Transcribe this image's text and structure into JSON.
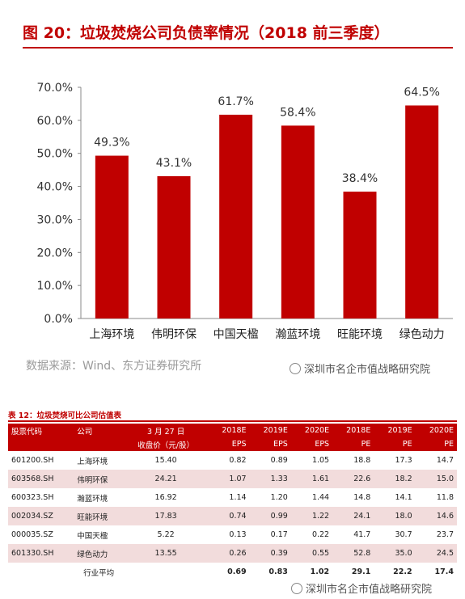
{
  "page_title": "图 20：垃圾焚烧公司负债率情况（2018 前三季度）",
  "source": "数据来源：Wind、东方证券研究所",
  "watermark": "深圳市名企市值战略研究院",
  "chart_data": {
    "type": "bar",
    "categories": [
      "上海环境",
      "伟明环保",
      "中国天楹",
      "瀚蓝环境",
      "旺能环境",
      "绿色动力"
    ],
    "values": [
      49.3,
      43.1,
      61.7,
      58.4,
      38.4,
      64.5
    ],
    "value_labels": [
      "49.3%",
      "43.1%",
      "61.7%",
      "58.4%",
      "38.4%",
      "64.5%"
    ],
    "ylim": [
      0,
      70
    ],
    "y_ticks": [
      "0.0%",
      "10.0%",
      "20.0%",
      "30.0%",
      "40.0%",
      "50.0%",
      "60.0%",
      "70.0%"
    ],
    "bar_color": "#c00000",
    "grid": false,
    "legend": "none"
  },
  "table": {
    "title": "表 12：垃圾焚烧可比公司估值表",
    "header_top": [
      "股票代码",
      "公司",
      "3 月 27 日",
      "2018E",
      "2019E",
      "2020E",
      "2018E",
      "2019E",
      "2020E"
    ],
    "header_bottom": [
      "",
      "",
      "收盘价（元/股）",
      "EPS",
      "EPS",
      "EPS",
      "PE",
      "PE",
      "PE"
    ],
    "rows": [
      [
        "601200.SH",
        "上海环境",
        "15.40",
        "0.82",
        "0.89",
        "1.05",
        "18.8",
        "17.3",
        "14.7"
      ],
      [
        "603568.SH",
        "伟明环保",
        "24.21",
        "1.07",
        "1.33",
        "1.61",
        "22.6",
        "18.2",
        "15.0"
      ],
      [
        "600323.SH",
        "瀚蓝环境",
        "16.92",
        "1.14",
        "1.20",
        "1.44",
        "14.8",
        "14.1",
        "11.8"
      ],
      [
        "002034.SZ",
        "旺能环境",
        "17.83",
        "0.74",
        "0.99",
        "1.22",
        "24.1",
        "18.0",
        "14.6"
      ],
      [
        "000035.SZ",
        "中国天楹",
        "5.22",
        "0.13",
        "0.17",
        "0.22",
        "41.7",
        "30.7",
        "23.7"
      ],
      [
        "601330.SH",
        "绿色动力",
        "13.55",
        "0.26",
        "0.39",
        "0.55",
        "52.8",
        "35.0",
        "24.5"
      ]
    ],
    "avg_row": [
      "",
      "行业平均",
      "",
      "0.69",
      "0.83",
      "1.02",
      "29.1",
      "22.2",
      "17.4"
    ]
  }
}
